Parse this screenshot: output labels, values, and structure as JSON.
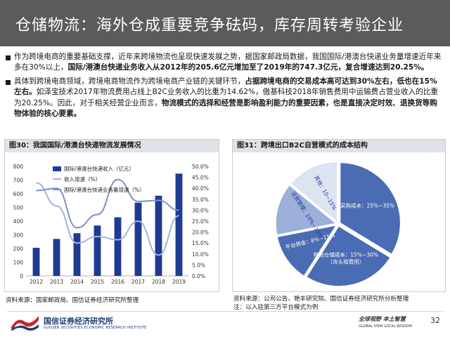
{
  "title": "仓储物流：海外仓成重要竞争砝码，库存周转考验企业",
  "bullets": [
    {
      "text_plain": "作为跨境电商的重要基础支撑，近年来跨境物流也呈现快速发展之势，据国家邮政局数据，我国国际/港澳台快递业务量增速近年来多在30%以上，",
      "text_bold": "国际/港澳台快递业务收入从2012年的205.6亿元增加至了2019年的747.3亿元，复合增速达到20.25%。"
    },
    {
      "text_plain": "具体到跨境电商领域，跨境电商物流作为跨境电商产业链的关键环节，",
      "text_bold1": "占据跨境电商的交易成本高可达到30%左右，低也在15%左右。",
      "text_plain2": "如泽宝技术2017年物流费用占线上B2C业务收入的比重为14.62%，傲基科技2018年销售费用中运输费占营业收入的比重为20.25%。因此，对于相关经营企业而言，",
      "text_bold2": "物流模式的选择和经营是影响盈利能力的重要因素，也是直接决定时效、退换货等购物体验的核心要素。"
    }
  ],
  "figure30": {
    "label": "图30：我国国际/港澳台快递物流发展情况",
    "source": "资料来源：国家邮政局、国信证券经济研究所整理"
  },
  "figure31": {
    "label": "图31：跨境出口B2C自营模式的成本结构",
    "source": "资料来源：公司公告、艳丰研究院、国信证券经济研究所分析整理",
    "note": "注：以入驻第三方平台模式为例"
  },
  "chart_data": [
    {
      "type": "bar",
      "categories": [
        "2012",
        "2013",
        "2014",
        "2015",
        "2016",
        "2017",
        "2018",
        "2019"
      ],
      "series": [
        {
          "name": "国际/港澳台快递收入（亿元）",
          "type": "bar",
          "axis": "left",
          "values": [
            205.6,
            270,
            312,
            368,
            428,
            535,
            586,
            747.3
          ]
        },
        {
          "name": "收入增速（%）",
          "type": "line",
          "axis": "right",
          "values": [
            42.5,
            32.0,
            15.0,
            18.0,
            16.5,
            25.0,
            9.5,
            27.5
          ]
        },
        {
          "name": "国际/港澳台快递业务量增速（%）",
          "type": "line",
          "axis": "right",
          "values": [
            39.0,
            40.0,
            22.0,
            28.0,
            44.0,
            34.0,
            34.5,
            30.0
          ]
        }
      ],
      "y_left_ticks": [
        "0",
        "100",
        "200",
        "300",
        "400",
        "500",
        "600",
        "700",
        "800"
      ],
      "y_right_ticks": [
        "0.0%",
        "5.0%",
        "10.0%",
        "15.0%",
        "20.0%",
        "25.0%",
        "30.0%",
        "35.0%",
        "40.0%",
        "45.0%",
        "50.0%"
      ],
      "ylim_left": [
        0,
        800
      ],
      "ylim_right": [
        0,
        50
      ],
      "legend": "top-left",
      "colors": {
        "bar": "#1f3a93",
        "line1": "#a5b3dc",
        "line2": "#7f8fc7"
      }
    },
    {
      "type": "pie",
      "slices": [
        {
          "label": "采购成本：25%~35%",
          "value": 30,
          "color": "#4a6cb3"
        },
        {
          "label": "物流仓储成本：15%~30%（含头程费用）",
          "value": 22.5,
          "color": "#4a6cb3"
        },
        {
          "label": "平台佣金：8%~15%",
          "value": 11.5,
          "color": "#4a6cb3"
        },
        {
          "label": "运营管理：10%~15%",
          "value": 12.5,
          "color": "#9bb0da"
        },
        {
          "label": "其他：10~15%",
          "value": 12.5,
          "color": "#dce4f2"
        }
      ]
    }
  ],
  "footer": {
    "org": "国信证券经济研究所",
    "org_en": "GUOSEN SECURITIES ECONOMIC RESEARCH INSTITUTE",
    "slogan": "全球视野 本土智慧",
    "slogan_en": "GLOBAL VIEW    LOCAL WISDOM",
    "page": "32"
  }
}
